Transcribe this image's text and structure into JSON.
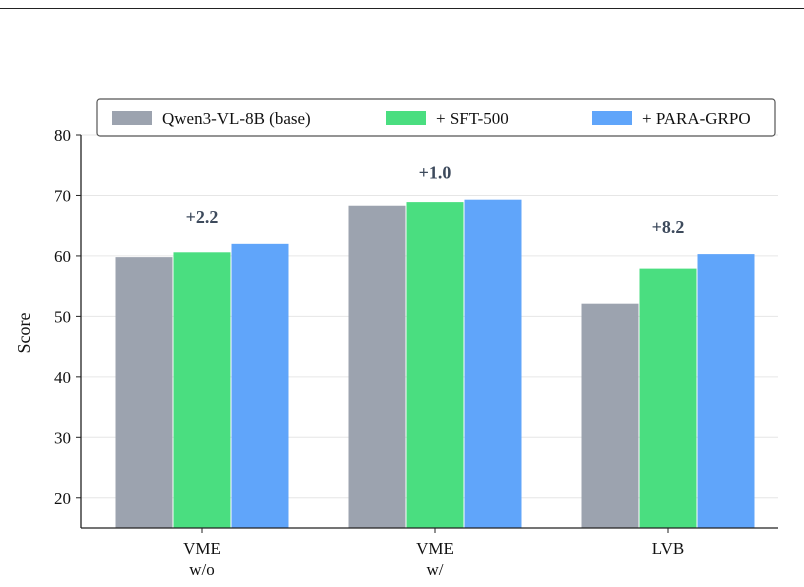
{
  "chart_data": {
    "type": "bar",
    "categories": [
      [
        "VME",
        "w/o"
      ],
      [
        "VME",
        "w/"
      ],
      [
        "LVB"
      ]
    ],
    "series": [
      {
        "name": "Qwen3-VL-8B (base)",
        "color": "#9ca3af",
        "values": [
          59.8,
          68.3,
          52.1
        ]
      },
      {
        "name": "+ SFT-500",
        "color": "#4ade80",
        "values": [
          60.6,
          68.9,
          57.9
        ]
      },
      {
        "name": "+ PARA-GRPO",
        "color": "#60a5fa",
        "values": [
          62.0,
          69.3,
          60.3
        ]
      }
    ],
    "annotations": [
      "+2.2",
      "+1.0",
      "+8.2"
    ],
    "ylabel": "Score",
    "xlabel": "",
    "ylim": [
      15,
      80
    ],
    "yticks": [
      20,
      30,
      40,
      50,
      60,
      70,
      80
    ],
    "grid": "horizontal",
    "legend_position": "top"
  }
}
